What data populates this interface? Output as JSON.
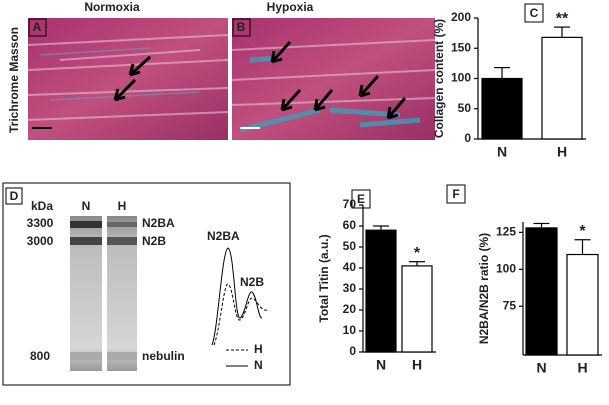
{
  "panels": {
    "normoxia": "Normoxia",
    "hypoxia": "Hypoxia",
    "stain": "Trichrome Masson",
    "a": "A",
    "b": "B"
  },
  "gel": {
    "letter": "D",
    "unit": "kDa",
    "lanes": [
      "N",
      "H"
    ],
    "markers": [
      "3300",
      "3000",
      "800"
    ],
    "bands": [
      "N2BA",
      "N2B",
      "nebulin"
    ],
    "trace_labels": [
      "N2BA",
      "N2B"
    ],
    "legend": [
      "H",
      "N"
    ]
  },
  "chart_data": [
    {
      "type": "bar",
      "letter": "C",
      "ylabel": "Collagen content (%)",
      "categories": [
        "N",
        "H"
      ],
      "values": [
        100,
        168
      ],
      "errors": [
        18,
        17
      ],
      "colors": [
        "#000000",
        "#ffffff"
      ],
      "ylim": [
        0,
        200
      ],
      "yticks": [
        0,
        50,
        100,
        150,
        200
      ],
      "annotation": "**"
    },
    {
      "type": "bar",
      "letter": "E",
      "ylabel": "Total Titin (a.u.)",
      "categories": [
        "N",
        "H"
      ],
      "values": [
        58,
        41
      ],
      "errors": [
        2,
        2
      ],
      "colors": [
        "#000000",
        "#ffffff"
      ],
      "ylim": [
        0,
        70
      ],
      "yticks": [
        0,
        10,
        20,
        30,
        40,
        50,
        60,
        70
      ],
      "annotation": "*"
    },
    {
      "type": "bar",
      "letter": "F",
      "ylabel": "N2BA/N2B ratio (%)",
      "categories": [
        "N",
        "H"
      ],
      "values": [
        128,
        110
      ],
      "errors": [
        3,
        10
      ],
      "colors": [
        "#000000",
        "#ffffff"
      ],
      "ylim": [
        42,
        132
      ],
      "yticks": [
        75,
        100,
        125
      ],
      "annotation": "*"
    }
  ]
}
